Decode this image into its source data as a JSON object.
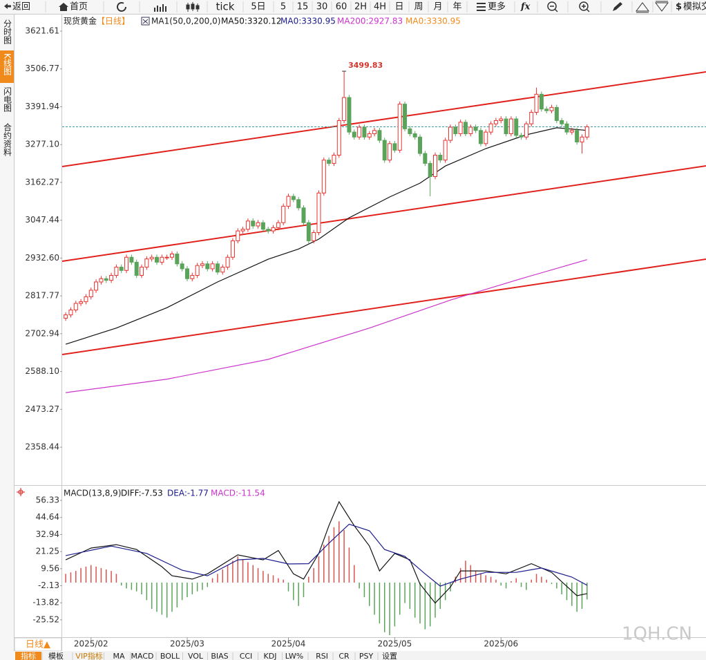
{
  "toolbar": [
    "返回",
    "首页",
    "tick",
    "5日",
    "5",
    "15",
    "30",
    "60",
    "2H",
    "4H",
    "日",
    "周",
    "月",
    "年",
    "更多",
    "模拟交"
  ],
  "side_tabs": [
    "分时图",
    "K线图",
    "闪电图",
    "合约资料"
  ],
  "period_button": "日线▲",
  "bottom_tabs": [
    "指标",
    "模板",
    "VIP指标",
    "MA",
    "MACD",
    "BOLL",
    "VOL",
    "BIAS",
    "CCI",
    "KDJ",
    "LW%",
    "RSI",
    "CR",
    "PSY",
    "设置"
  ],
  "watermark": "1QH.CN",
  "chart_data": [
    {
      "type": "candlestick",
      "legend": [
        "现货黄金",
        "【日线】",
        "MA1(50,0,200,0)",
        "MA50:3320.12",
        "MA0:3330.95",
        "MA200:2927.83",
        "MA0:3330.95"
      ],
      "up_color": "#e8302c",
      "down_color": "#5aa35a",
      "ylim": [
        2247.3,
        3669.9
      ],
      "yticks": [
        3621.61,
        3506.77,
        3391.94,
        {
          "value": 3277.1,
          "label": "3277.10"
        },
        3162.27,
        3047.44,
        {
          "value": 2932.6,
          "label": "2932.60"
        },
        2817.77,
        2702.94,
        {
          "value": 2588.1,
          "label": "2588.10"
        },
        2473.27,
        2358.44
      ],
      "xlim": [
        -0.7,
        126.5
      ],
      "xticks": [
        {
          "value": 5,
          "label": "2025/02"
        },
        {
          "value": 24,
          "label": "2025/03"
        },
        {
          "value": 44,
          "label": "2025/04"
        },
        {
          "value": 65,
          "label": "2025/05"
        },
        {
          "value": 86,
          "label": "2025/06"
        }
      ],
      "last_price": 3330.95,
      "annotations": [
        {
          "index": 55,
          "value": 3499.83,
          "text": "3499.83"
        }
      ],
      "candles": [
        [
          2750,
          2768,
          2742,
          2760
        ],
        [
          2760,
          2783,
          2752,
          2775
        ],
        [
          2775,
          2803,
          2767,
          2795
        ],
        [
          2795,
          2808,
          2787,
          2800
        ],
        [
          2800,
          2823,
          2792,
          2815
        ],
        [
          2815,
          2843,
          2807,
          2835
        ],
        [
          2835,
          2868,
          2827,
          2860
        ],
        [
          2860,
          2878,
          2852,
          2870
        ],
        [
          2870,
          2878,
          2857,
          2865
        ],
        [
          2865,
          2888,
          2857,
          2880
        ],
        [
          2880,
          2913,
          2872,
          2905
        ],
        [
          2905,
          2913,
          2887,
          2895
        ],
        [
          2895,
          2943,
          2887,
          2935
        ],
        [
          2935,
          2943,
          2912,
          2920
        ],
        [
          2920,
          2928,
          2872,
          2880
        ],
        [
          2880,
          2913,
          2872,
          2905
        ],
        [
          2905,
          2938,
          2897,
          2930
        ],
        [
          2930,
          2943,
          2922,
          2935
        ],
        [
          2935,
          2943,
          2912,
          2920
        ],
        [
          2920,
          2943,
          2912,
          2935
        ],
        [
          2935,
          2943,
          2927,
          2935
        ],
        [
          2935,
          2953,
          2927,
          2945
        ],
        [
          2945,
          2953,
          2907,
          2915
        ],
        [
          2915,
          2923,
          2892,
          2900
        ],
        [
          2900,
          2908,
          2862,
          2870
        ],
        [
          2870,
          2888,
          2862,
          2880
        ],
        [
          2880,
          2918,
          2872,
          2910
        ],
        [
          2910,
          2923,
          2902,
          2915
        ],
        [
          2915,
          2923,
          2892,
          2900
        ],
        [
          2900,
          2923,
          2892,
          2915
        ],
        [
          2915,
          2923,
          2882,
          2890
        ],
        [
          2890,
          2913,
          2882,
          2905
        ],
        [
          2905,
          2943,
          2897,
          2935
        ],
        [
          2935,
          2993,
          2927,
          2985
        ],
        [
          2985,
          3023,
          2977,
          3015
        ],
        [
          3015,
          3028,
          3007,
          3020
        ],
        [
          3020,
          3053,
          3012,
          3045
        ],
        [
          3045,
          3053,
          3022,
          3030
        ],
        [
          3030,
          3048,
          3022,
          3040
        ],
        [
          3040,
          3048,
          3012,
          3020
        ],
        [
          3020,
          3028,
          3007,
          3015
        ],
        [
          3015,
          3033,
          3007,
          3025
        ],
        [
          3025,
          3048,
          3017,
          3040
        ],
        [
          3040,
          3098,
          3032,
          3090
        ],
        [
          3090,
          3128,
          3082,
          3120
        ],
        [
          3120,
          3128,
          3102,
          3110
        ],
        [
          3110,
          3118,
          3077,
          3085
        ],
        [
          3085,
          3093,
          3032,
          3040
        ],
        [
          3040,
          3048,
          2977,
          2985
        ],
        [
          2985,
          3018,
          2977,
          3010
        ],
        [
          3010,
          3138,
          3002,
          3130
        ],
        [
          3130,
          3238,
          3122,
          3230
        ],
        [
          3230,
          3238,
          3212,
          3220
        ],
        [
          3220,
          3253,
          3212,
          3245
        ],
        [
          3245,
          3358,
          3237,
          3350
        ],
        [
          3350,
          3499.83,
          3342,
          3420
        ],
        [
          3420,
          3428,
          3307,
          3315
        ],
        [
          3315,
          3323,
          3292,
          3300
        ],
        [
          3300,
          3338,
          3292,
          3330
        ],
        [
          3330,
          3338,
          3292,
          3300
        ],
        [
          3300,
          3318,
          3292,
          3310
        ],
        [
          3310,
          3328,
          3302,
          3320
        ],
        [
          3320,
          3328,
          3282,
          3290
        ],
        [
          3290,
          3298,
          3222,
          3230
        ],
        [
          3230,
          3288,
          3222,
          3280
        ],
        [
          3280,
          3288,
          3252,
          3260
        ],
        [
          3260,
          3408,
          3252,
          3400
        ],
        [
          3400,
          3408,
          3317,
          3325
        ],
        [
          3325,
          3333,
          3302,
          3310
        ],
        [
          3310,
          3318,
          3292,
          3300
        ],
        [
          3300,
          3308,
          3242,
          3250
        ],
        [
          3250,
          3258,
          3212,
          3220
        ],
        [
          3220,
          3228,
          3120,
          3180
        ],
        [
          3180,
          3253,
          3172,
          3245
        ],
        [
          3245,
          3253,
          3222,
          3230
        ],
        [
          3230,
          3298,
          3222,
          3290
        ],
        [
          3290,
          3338,
          3282,
          3330
        ],
        [
          3330,
          3338,
          3302,
          3310
        ],
        [
          3310,
          3353,
          3302,
          3345
        ],
        [
          3345,
          3353,
          3302,
          3310
        ],
        [
          3310,
          3338,
          3302,
          3330
        ],
        [
          3330,
          3338,
          3312,
          3320
        ],
        [
          3320,
          3328,
          3272,
          3280
        ],
        [
          3280,
          3323,
          3272,
          3315
        ],
        [
          3315,
          3348,
          3307,
          3340
        ],
        [
          3340,
          3358,
          3332,
          3350
        ],
        [
          3350,
          3363,
          3342,
          3355
        ],
        [
          3355,
          3363,
          3302,
          3310
        ],
        [
          3310,
          3363,
          3302,
          3355
        ],
        [
          3355,
          3363,
          3297,
          3305
        ],
        [
          3305,
          3313,
          3292,
          3300
        ],
        [
          3300,
          3348,
          3292,
          3340
        ],
        [
          3340,
          3383,
          3332,
          3375
        ],
        [
          3375,
          3450,
          3367,
          3430
        ],
        [
          3430,
          3438,
          3377,
          3385
        ],
        [
          3385,
          3393,
          3372,
          3380
        ],
        [
          3380,
          3398,
          3372,
          3390
        ],
        [
          3390,
          3398,
          3342,
          3350
        ],
        [
          3350,
          3358,
          3332,
          3340
        ],
        [
          3340,
          3348,
          3307,
          3315
        ],
        [
          3315,
          3328,
          3307,
          3320
        ],
        [
          3320,
          3328,
          3277,
          3285
        ],
        [
          3285,
          3308,
          3250,
          3300
        ],
        [
          3300,
          3338,
          3292,
          3330.95
        ]
      ],
      "series": [
        {
          "name": "MA50",
          "color": "#111111",
          "x": [
            0,
            10,
            20,
            30,
            40,
            46,
            50,
            56,
            64,
            70,
            75,
            83,
            91,
            97,
            103
          ],
          "values": [
            2671,
            2720,
            2782,
            2860,
            2929,
            2960,
            2990,
            3055,
            3118,
            3160,
            3212,
            3265,
            3307,
            3328,
            3320.12
          ]
        },
        {
          "name": "MA200",
          "color": "#cc33cc",
          "x": [
            0,
            20,
            40,
            60,
            76,
            90,
            103
          ],
          "values": [
            2524,
            2565,
            2625,
            2720,
            2805,
            2870,
            2927.83
          ]
        }
      ]
    },
    {
      "type": "macd",
      "legend": [
        "MACD(13,8,9)",
        "DIFF:-7.53",
        "DEA:-1.77",
        "MACD:-11.54"
      ],
      "ylim": [
        -37.4,
        66.3
      ],
      "yticks": [
        56.33,
        44.64,
        32.94,
        21.25,
        9.56,
        -2.13,
        -13.82,
        -25.52
      ],
      "xlim": [
        -0.7,
        126.5
      ],
      "up_color": "#d9534f",
      "down_color": "#5aa35a",
      "histogram": [
        6,
        7,
        8,
        10,
        11,
        12,
        11,
        10,
        9,
        8,
        6,
        -2,
        -4,
        -5,
        -6,
        -8,
        -12,
        -18,
        -20,
        -22,
        -24,
        -20,
        -17,
        -12,
        -10,
        -8,
        -6,
        -5,
        -3,
        3,
        6,
        9,
        12,
        15,
        18,
        16,
        14,
        12,
        10,
        8,
        6,
        5,
        3,
        2,
        -6,
        -12,
        -16,
        -10,
        4,
        10,
        18,
        26,
        32,
        38,
        42,
        36,
        24,
        12,
        -4,
        -10,
        -16,
        -22,
        -28,
        -34,
        -36,
        -30,
        -22,
        -14,
        -18,
        -24,
        -28,
        -32,
        -30,
        -24,
        -18,
        -12,
        -6,
        4,
        10,
        15,
        12,
        8,
        6,
        5,
        4,
        2,
        -2,
        -4,
        1,
        3,
        -3,
        -5,
        2,
        6,
        4,
        2,
        -1,
        -4,
        -8,
        -12,
        -16,
        -20,
        -18,
        -11.54
      ],
      "series": [
        {
          "name": "DIFF",
          "color": "#111111",
          "x": [
            0,
            5,
            10,
            14,
            19,
            21,
            25,
            28,
            34,
            39,
            42,
            45,
            47,
            50,
            52,
            54,
            57,
            60,
            62,
            65,
            68,
            70,
            73,
            76,
            78,
            83,
            87,
            92,
            96,
            101,
            103
          ],
          "values": [
            15.6,
            23.7,
            26,
            22.7,
            10.9,
            4.7,
            2.4,
            6,
            19,
            15.6,
            22,
            6,
            2.4,
            20,
            39,
            55.4,
            39,
            25,
            8,
            20,
            15.6,
            -1,
            -14,
            -3,
            8,
            8,
            6,
            13,
            7,
            -9,
            -7.53
          ]
        },
        {
          "name": "DEA",
          "color": "#1a1a8c",
          "x": [
            0,
            9,
            16,
            23,
            28,
            34,
            39,
            44,
            48,
            52,
            56,
            60,
            63,
            67,
            71,
            74,
            78,
            83,
            89,
            94,
            100,
            103
          ],
          "values": [
            18.5,
            25,
            20,
            8.5,
            4.7,
            15.6,
            16.6,
            12.8,
            13,
            27,
            40,
            35.5,
            22.7,
            18,
            6,
            -2.4,
            2.4,
            7,
            7,
            10,
            3.8,
            -1.77
          ]
        }
      ]
    }
  ]
}
